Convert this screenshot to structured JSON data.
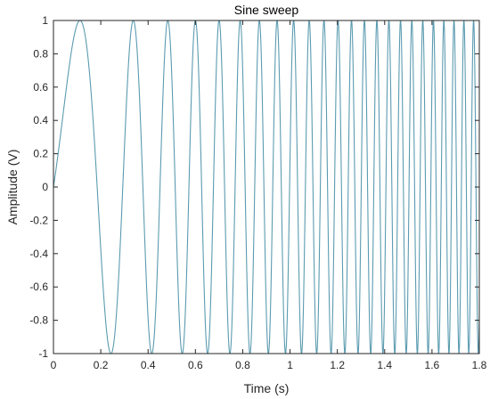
{
  "chart_data": {
    "type": "line",
    "title": "Sine sweep",
    "xlabel": "Time (s)",
    "ylabel": "Amplitude (V)",
    "xlim": [
      0,
      1.8
    ],
    "ylim": [
      -1,
      1
    ],
    "x_ticks": [
      "0",
      "0.2",
      "0.4",
      "0.6",
      "0.8",
      "1",
      "1.2",
      "1.4",
      "1.6",
      "1.8"
    ],
    "y_ticks": [
      "-1",
      "-0.8",
      "-0.6",
      "-0.4",
      "-0.2",
      "0",
      "0.2",
      "0.4",
      "0.6",
      "0.8",
      "1"
    ],
    "grid": false,
    "series": [
      {
        "color": "#5b9bb0",
        "function": "sine sweep (chirp)",
        "amplitude": 1,
        "start_frequency_hz": 1.5,
        "end_frequency_hz": 25,
        "sweep": "linear"
      }
    ]
  }
}
